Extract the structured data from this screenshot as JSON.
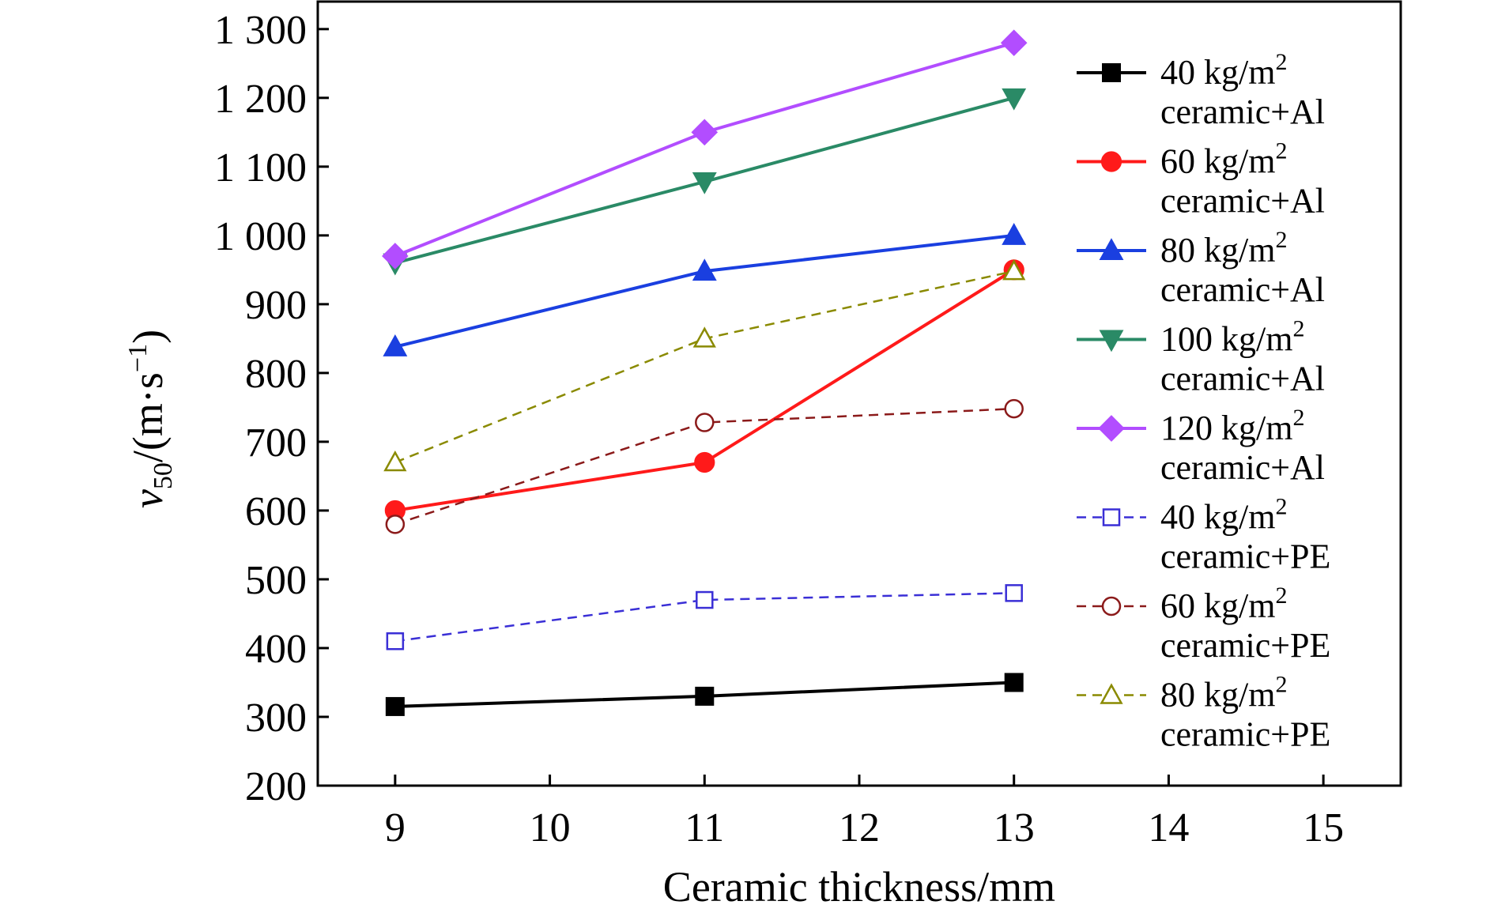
{
  "chart_data": {
    "type": "line",
    "xlabel": "Ceramic thickness/mm",
    "ylabel": {
      "base": "v",
      "sub": "50",
      "unit_open": "/(m·s",
      "sup": "−1",
      "unit_close": ")"
    },
    "xlim": [
      8.5,
      15.5
    ],
    "ylim": [
      200,
      1340
    ],
    "x_ticks": [
      9,
      10,
      11,
      12,
      13,
      14,
      15
    ],
    "x_tick_labels": [
      "9",
      "10",
      "11",
      "12",
      "13",
      "14",
      "15"
    ],
    "y_ticks": [
      200,
      300,
      400,
      500,
      600,
      700,
      800,
      900,
      1000,
      1100,
      1200,
      1300
    ],
    "y_tick_labels": [
      "200",
      "300",
      "400",
      "500",
      "600",
      "700",
      "800",
      "900",
      "1 000",
      "1 100",
      "1 200",
      "1 300"
    ],
    "grid": false,
    "legend_position": "right",
    "x": [
      9,
      11,
      13
    ],
    "series": [
      {
        "name_line1": "40 kg/m",
        "name_sup": "2",
        "name_line2": "ceramic+Al",
        "values": [
          315,
          330,
          350
        ],
        "color": "#000000",
        "marker": "square",
        "filled": true,
        "dashed": false
      },
      {
        "name_line1": "60 kg/m",
        "name_sup": "2",
        "name_line2": "ceramic+Al",
        "values": [
          600,
          670,
          950
        ],
        "color": "#ff1a1a",
        "marker": "circle",
        "filled": true,
        "dashed": false
      },
      {
        "name_line1": "80 kg/m",
        "name_sup": "2",
        "name_line2": "ceramic+Al",
        "values": [
          838,
          948,
          1000
        ],
        "color": "#1a3fe0",
        "marker": "triangle-up",
        "filled": true,
        "dashed": false
      },
      {
        "name_line1": "100 kg/m",
        "name_sup": "2",
        "name_line2": "ceramic+Al",
        "values": [
          960,
          1078,
          1200
        ],
        "color": "#2a8a66",
        "marker": "triangle-down",
        "filled": true,
        "dashed": false
      },
      {
        "name_line1": "120 kg/m",
        "name_sup": "2",
        "name_line2": "ceramic+Al",
        "values": [
          970,
          1150,
          1280
        ],
        "color": "#b24dff",
        "marker": "diamond",
        "filled": true,
        "dashed": false
      },
      {
        "name_line1": "40 kg/m",
        "name_sup": "2",
        "name_line2": "ceramic+PE",
        "values": [
          410,
          470,
          480
        ],
        "color": "#3a2fd6",
        "marker": "square",
        "filled": false,
        "dashed": true
      },
      {
        "name_line1": "60 kg/m",
        "name_sup": "2",
        "name_line2": "ceramic+PE",
        "values": [
          580,
          728,
          748
        ],
        "color": "#8b1a1a",
        "marker": "circle",
        "filled": false,
        "dashed": true
      },
      {
        "name_line1": "80 kg/m",
        "name_sup": "2",
        "name_line2": "ceramic+PE",
        "values": [
          670,
          850,
          948
        ],
        "color": "#8a8a00",
        "marker": "triangle-up",
        "filled": false,
        "dashed": true
      }
    ]
  }
}
